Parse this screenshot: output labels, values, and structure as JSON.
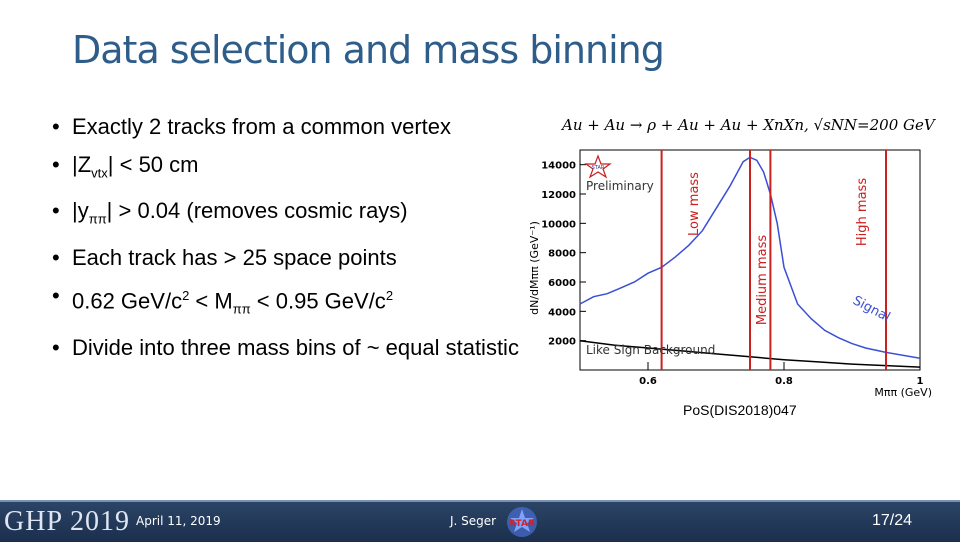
{
  "title": "Data selection and mass binning",
  "bullets": [
    {
      "pre": "Exactly 2 tracks from a common vertex"
    },
    {
      "pre": "|Z",
      "sub": "vtx",
      "post": "| < 50 cm"
    },
    {
      "pre": "|y",
      "sub": "ππ",
      "post": "| > 0.04 (removes cosmic rays)"
    },
    {
      "pre": "Each track has  > 25 space points"
    },
    {
      "pre": "0.62 GeV/c",
      "sup": "2",
      "mid": " < M",
      "sub2": "ππ",
      "post": " < 0.95 GeV/c",
      "sup2": "2"
    },
    {
      "pre": "Divide into three mass bins of ~ equal statistic"
    }
  ],
  "reference": "PoS(DIS2018)047",
  "chart_data": {
    "type": "line",
    "title": "Au + Au → ρ + Au + Au + XnXn,  √sNN=200 GeV",
    "xlabel": "Mππ (GeV)",
    "ylabel": "dN/dMππ (GeV⁻¹)",
    "xlim": [
      0.5,
      1.0
    ],
    "ylim": [
      0,
      15000
    ],
    "xticks": [
      "0.6",
      "0.8",
      "1"
    ],
    "yticks": [
      "2000",
      "4000",
      "6000",
      "8000",
      "10000",
      "12000",
      "14000"
    ],
    "series": [
      {
        "name": "Signal",
        "color": "#3a4fd6",
        "x": [
          0.5,
          0.52,
          0.54,
          0.56,
          0.58,
          0.6,
          0.62,
          0.64,
          0.66,
          0.68,
          0.7,
          0.72,
          0.74,
          0.75,
          0.76,
          0.77,
          0.78,
          0.79,
          0.8,
          0.82,
          0.84,
          0.86,
          0.88,
          0.9,
          0.92,
          0.95,
          1.0
        ],
        "y": [
          4500,
          5000,
          5200,
          5600,
          6000,
          6600,
          7000,
          7700,
          8500,
          9500,
          11000,
          12500,
          14200,
          14500,
          14300,
          13500,
          12000,
          10000,
          7000,
          4500,
          3500,
          2700,
          2200,
          1800,
          1500,
          1200,
          800
        ]
      },
      {
        "name": "Like Sign Background",
        "color": "#000000",
        "x": [
          0.5,
          0.55,
          0.6,
          0.65,
          0.7,
          0.75,
          0.8,
          0.85,
          0.9,
          0.95,
          1.0
        ],
        "y": [
          2000,
          1700,
          1500,
          1300,
          1100,
          900,
          700,
          550,
          400,
          300,
          200
        ]
      }
    ],
    "bin_edges": [
      0.62,
      0.75,
      0.78,
      0.95
    ],
    "annotations": {
      "preliminary": "Preliminary",
      "star": "STAR",
      "signal": "Signal",
      "background": "Like Sign Background",
      "low": "Low mass",
      "medium": "Medium mass",
      "high": "High mass"
    },
    "colors": {
      "cuts": "#cc1f1f",
      "annotation": "#cc1f1f"
    }
  },
  "footer": {
    "conference": "GHP 2019",
    "date": "April 11, 2019",
    "author": "J. Seger",
    "logo": "STAR",
    "page": "17/24"
  }
}
